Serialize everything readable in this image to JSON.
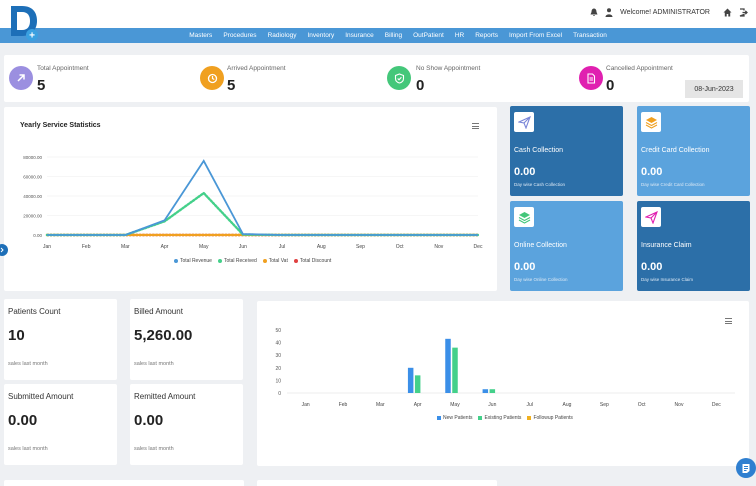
{
  "header": {
    "logo_letter": "D",
    "logo_plus": "+",
    "welcome": "Welcome! ADMINISTRATOR"
  },
  "nav": [
    "Masters",
    "Procedures",
    "Radiology",
    "Inventory",
    "Insurance",
    "Billing",
    "OutPatient",
    "HR",
    "Reports",
    "Import From Excel",
    "Transaction"
  ],
  "stats": [
    {
      "label": "Total Appointment",
      "value": "5",
      "color": "#9b8fe0",
      "icon": "arrow-up-right-icon"
    },
    {
      "label": "Arrived Appointment",
      "value": "5",
      "color": "#f0a020",
      "icon": "clock-icon"
    },
    {
      "label": "No Show Appointment",
      "value": "0",
      "color": "#44c77a",
      "icon": "shield-check-icon"
    },
    {
      "label": "Cancelled Appointment",
      "value": "0",
      "color": "#e020b0",
      "icon": "document-icon"
    }
  ],
  "date": "08-Jun-2023",
  "tiles": [
    {
      "title": "Cash Collection",
      "value": "0.00",
      "sub": "Day wise Cash Collection",
      "bg": "#2c6fa8",
      "icon": "paper-plane-icon",
      "icon_color": "#7a86d8"
    },
    {
      "title": "Credit Card Collection",
      "value": "0.00",
      "sub": "Day wise Credit Card Collection",
      "bg": "#5ba3dd",
      "icon": "layers-icon",
      "icon_color": "#f0a020"
    },
    {
      "title": "Online Collection",
      "value": "0.00",
      "sub": "Day wise Online Collection",
      "bg": "#5ba3dd",
      "icon": "layers-icon",
      "icon_color": "#44c77a"
    },
    {
      "title": "Insurance Claim",
      "value": "0.00",
      "sub": "Day wise Insurance Claim",
      "bg": "#2c6fa8",
      "icon": "paper-plane-icon",
      "icon_color": "#e020b0"
    }
  ],
  "metrics": [
    {
      "title": "Patients Count",
      "value": "10",
      "sub": "sales last month"
    },
    {
      "title": "Billed Amount",
      "value": "5,260.00",
      "sub": "sales last month"
    },
    {
      "title": "Submitted Amount",
      "value": "0.00",
      "sub": "sales last month"
    },
    {
      "title": "Remitted Amount",
      "value": "0.00",
      "sub": "sales last month"
    }
  ],
  "chart_data": [
    {
      "type": "line",
      "title": "Yearly Service Statistics",
      "categories": [
        "Jan",
        "Feb",
        "Mar",
        "Apr",
        "May",
        "Jun",
        "Jul",
        "Aug",
        "Sep",
        "Oct",
        "Nov",
        "Dec"
      ],
      "yticks": [
        "0.00",
        "20000.00",
        "40000.00",
        "60000.00",
        "80000.00"
      ],
      "ylim": [
        0,
        80000
      ],
      "legend_position": "bottom",
      "series": [
        {
          "name": "Total Revenue",
          "color": "#4a97d6",
          "style": "solid",
          "values": [
            0,
            0,
            0,
            15000,
            76000,
            1000,
            0,
            0,
            0,
            0,
            0,
            0
          ]
        },
        {
          "name": "Total Received",
          "color": "#44d08a",
          "style": "dotted",
          "values": [
            0,
            0,
            0,
            14000,
            43000,
            500,
            0,
            0,
            0,
            0,
            0,
            0
          ]
        },
        {
          "name": "Total Vat",
          "color": "#f0a020",
          "style": "dotted",
          "values": [
            0,
            0,
            0,
            0,
            0,
            0,
            0,
            0,
            0,
            0,
            0,
            0
          ]
        },
        {
          "name": "Total Discount",
          "color": "#e04040",
          "style": "dotted",
          "values": [
            0,
            0,
            0,
            0,
            0,
            0,
            0,
            0,
            0,
            0,
            0,
            0
          ]
        }
      ]
    },
    {
      "type": "bar",
      "categories": [
        "Jan",
        "Feb",
        "Mar",
        "Apr",
        "May",
        "Jun",
        "Jul",
        "Aug",
        "Sep",
        "Oct",
        "Nov",
        "Dec"
      ],
      "yticks": [
        "0",
        "10",
        "20",
        "30",
        "40",
        "50"
      ],
      "ylim": [
        0,
        50
      ],
      "legend_position": "bottom",
      "series": [
        {
          "name": "New Patients",
          "color": "#3b8fe8",
          "values": [
            0,
            0,
            0,
            20,
            43,
            3,
            0,
            0,
            0,
            0,
            0,
            0
          ]
        },
        {
          "name": "Existing Patients",
          "color": "#44d08a",
          "values": [
            0,
            0,
            0,
            14,
            36,
            3,
            0,
            0,
            0,
            0,
            0,
            0
          ]
        },
        {
          "name": "Followup Patients",
          "color": "#f0b020",
          "values": [
            0,
            0,
            0,
            0,
            0,
            0,
            0,
            0,
            0,
            0,
            0,
            0
          ]
        }
      ]
    }
  ]
}
